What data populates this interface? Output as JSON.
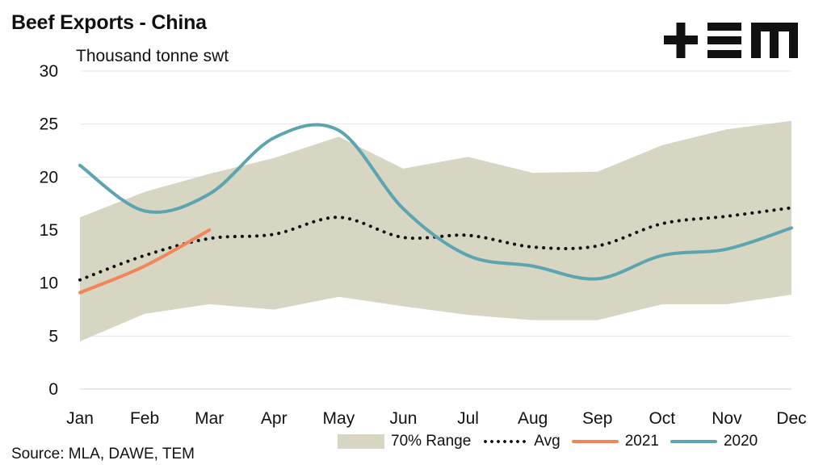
{
  "header": {
    "title": "Beef Exports - China",
    "unit": "Thousand tonne swt",
    "logo_text": "+EM"
  },
  "footer": {
    "source": "Source: MLA, DAWE, TEM"
  },
  "chart_data": {
    "type": "line",
    "title": "Beef Exports - China",
    "ylabel": "Thousand tonne swt",
    "xlabel": "",
    "categories": [
      "Jan",
      "Feb",
      "Mar",
      "Apr",
      "May",
      "Jun",
      "Jul",
      "Aug",
      "Sep",
      "Oct",
      "Nov",
      "Dec"
    ],
    "ylim": [
      0,
      30
    ],
    "yticks": [
      0,
      5,
      10,
      15,
      20,
      25,
      30
    ],
    "grid": true,
    "legend_position": "bottom",
    "series": [
      {
        "name": "70% Range",
        "kind": "band",
        "color": "#d6d6c2",
        "upper": [
          16.2,
          18.6,
          20.3,
          21.8,
          23.8,
          20.8,
          21.9,
          20.4,
          20.5,
          23.0,
          24.5,
          25.3
        ],
        "lower": [
          4.5,
          7.1,
          8.0,
          7.5,
          8.7,
          7.8,
          7.0,
          6.5,
          6.5,
          8.0,
          8.0,
          8.9
        ]
      },
      {
        "name": "Avg",
        "kind": "dotted",
        "color": "#111111",
        "values": [
          10.3,
          12.6,
          14.2,
          14.6,
          16.2,
          14.3,
          14.5,
          13.4,
          13.5,
          15.6,
          16.3,
          17.1
        ]
      },
      {
        "name": "2021",
        "kind": "line",
        "color": "#f4845a",
        "values": [
          9.1,
          11.6,
          15.0,
          null,
          null,
          null,
          null,
          null,
          null,
          null,
          null,
          null
        ]
      },
      {
        "name": "2020",
        "kind": "line",
        "color": "#5ba4b0",
        "values": [
          21.1,
          16.8,
          18.4,
          23.7,
          24.4,
          17.0,
          12.6,
          11.6,
          10.4,
          12.6,
          13.2,
          15.2
        ]
      }
    ]
  }
}
